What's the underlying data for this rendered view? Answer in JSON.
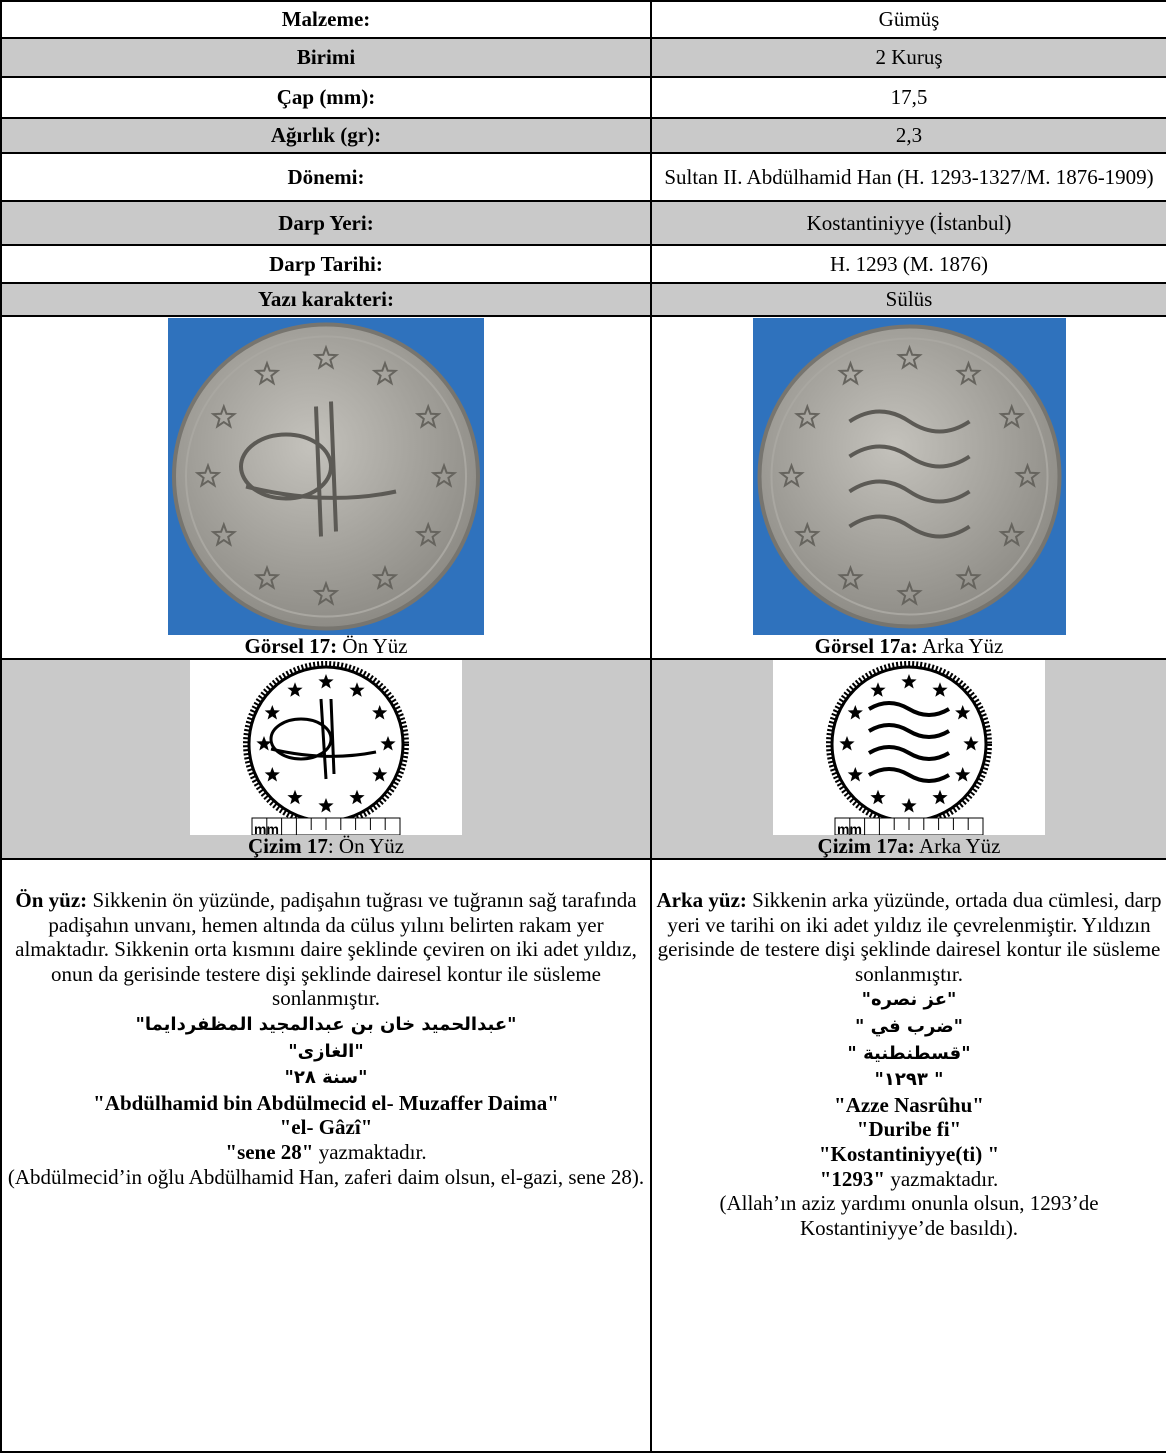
{
  "table": {
    "rows": [
      [
        "Malzeme:",
        "Gümüş"
      ],
      [
        "Birimi",
        "2 Kuruş"
      ],
      [
        "Çap (mm):",
        "17,5"
      ],
      [
        "Ağırlık (gr):",
        "2,3"
      ],
      [
        "Dönemi:",
        "Sultan II. Abdülhamid Han (H. 1293-1327/M. 1876-1909)"
      ],
      [
        "Darp Yeri:",
        "Kostantiniyye (İstanbul)"
      ],
      [
        "Darp Tarihi:",
        "H. 1293 (M. 1876)"
      ],
      [
        "Yazı karakteri:",
        "Sülüs"
      ]
    ],
    "photos": [
      {
        "bold": "Görsel 17:",
        "text": "Ön Yüz"
      },
      {
        "bold": "Görsel 17a:",
        "text": "Arka Yüz"
      }
    ],
    "drawings": [
      {
        "bold": "Çizim 17",
        "text": ": Ön Yüz",
        "scale": "mm"
      },
      {
        "bold": "Çizim 17a:",
        "text": "Arka Yüz",
        "scale": "mm"
      }
    ],
    "descriptions": [
      {
        "lines": [
          {
            "bold": "Ön yüz:",
            "text": "Sikkenin ön yüzünde, padişahın tuğrası ve tuğranın sağ tarafında padişahın unvanı, hemen altında da cülus yılını belirten rakam yer almaktadır. Sikkenin orta kısmını daire şeklinde çeviren on iki adet yıldız, onun da gerisinde testere dişi şeklinde dairesel kontur ile süsleme sonlanmıştır."
          },
          {
            "bold": "\"عبدالحميد  خان بن عبدالمجيد المظفردايما\""
          },
          {
            "bold": "\"الغازى\""
          },
          {
            "bold": "\"سنة ٢٨\""
          },
          {
            "bold": "\"Abdülhamid bin Abdülmecid el- Muzaffer Daima\""
          },
          {
            "bold": "\"el- Gâzî\""
          },
          {
            "bold": "\"sene 28\"",
            "text": "yazmaktadır."
          },
          {
            "text": "(Abdülmecid’in oğlu Abdülhamid Han, zaferi daim olsun, el-gazi, sene 28)."
          }
        ]
      },
      {
        "lines": [
          {
            "bold": "Arka yüz:",
            "text": "Sikkenin arka yüzünde, ortada dua cümlesi, darp yeri ve tarihi on iki adet yıldız ile çevrelenmiştir.  Yıldızın gerisinde de testere dişi şeklinde dairesel kontur ile süsleme sonlanmıştır."
          },
          {
            "bold": "\"عز نصره\""
          },
          {
            "bold": "\" ضرب في\""
          },
          {
            "bold": "\" قسطنطنية\""
          },
          {
            "bold": "\"١٢٩٣ \""
          },
          {
            "bold": "\"Azze Nasrûhu\""
          },
          {
            "bold": "\"Duribe fi\""
          },
          {
            "bold": "\"Kostantiniyye(ti) \""
          },
          {
            "bold": "\"1293\"",
            "text": "yazmaktadır."
          },
          {
            "text": "(Allah’ın aziz yardımı onunla olsun, 1293’de Kostantiniyye’de basıldı)."
          }
        ]
      }
    ]
  }
}
